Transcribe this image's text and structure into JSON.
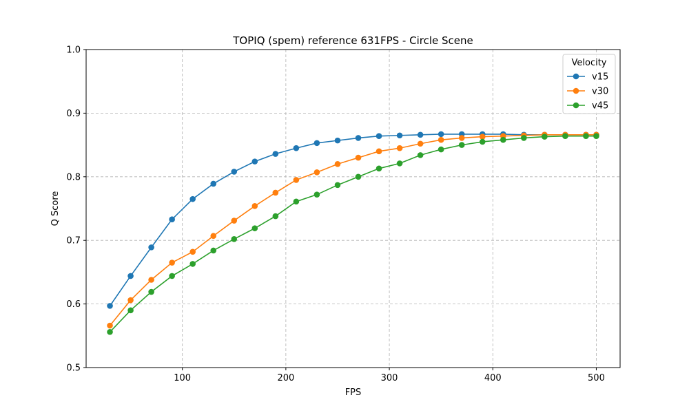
{
  "chart_data": {
    "type": "line",
    "title": "TOPIQ (spem) reference 631FPS - Circle Scene",
    "xlabel": "FPS",
    "ylabel": "Q Score",
    "xlim": [
      7,
      523
    ],
    "ylim": [
      0.5,
      1.0
    ],
    "xticks": [
      100,
      200,
      300,
      400,
      500
    ],
    "yticks": [
      0.5,
      0.6,
      0.7,
      0.8,
      0.9,
      1.0
    ],
    "xtick_labels": [
      "100",
      "200",
      "300",
      "400",
      "500"
    ],
    "ytick_labels": [
      "0.5",
      "0.6",
      "0.7",
      "0.8",
      "0.9",
      "1.0"
    ],
    "grid": true,
    "legend": {
      "title": "Velocity",
      "placement": "top-right"
    },
    "x": [
      30,
      50,
      70,
      90,
      110,
      130,
      150,
      170,
      190,
      210,
      230,
      250,
      270,
      290,
      310,
      330,
      350,
      370,
      390,
      410,
      430,
      450,
      470,
      490,
      500
    ],
    "series": [
      {
        "name": "v15",
        "color": "#1f77b4",
        "values": [
          0.597,
          0.644,
          0.689,
          0.733,
          0.765,
          0.789,
          0.808,
          0.824,
          0.836,
          0.845,
          0.853,
          0.857,
          0.861,
          0.864,
          0.865,
          0.866,
          0.867,
          0.867,
          0.867,
          0.867,
          0.866,
          0.866,
          0.866,
          0.866,
          0.866
        ]
      },
      {
        "name": "v30",
        "color": "#ff7f0e",
        "values": [
          0.566,
          0.606,
          0.638,
          0.665,
          0.682,
          0.707,
          0.731,
          0.754,
          0.775,
          0.795,
          0.807,
          0.82,
          0.83,
          0.84,
          0.845,
          0.852,
          0.858,
          0.861,
          0.863,
          0.864,
          0.865,
          0.866,
          0.866,
          0.866,
          0.866
        ]
      },
      {
        "name": "v45",
        "color": "#2ca02c",
        "values": [
          0.556,
          0.59,
          0.619,
          0.644,
          0.663,
          0.684,
          0.702,
          0.719,
          0.738,
          0.761,
          0.772,
          0.787,
          0.8,
          0.813,
          0.821,
          0.834,
          0.843,
          0.85,
          0.855,
          0.858,
          0.861,
          0.863,
          0.864,
          0.864,
          0.864
        ]
      }
    ]
  }
}
